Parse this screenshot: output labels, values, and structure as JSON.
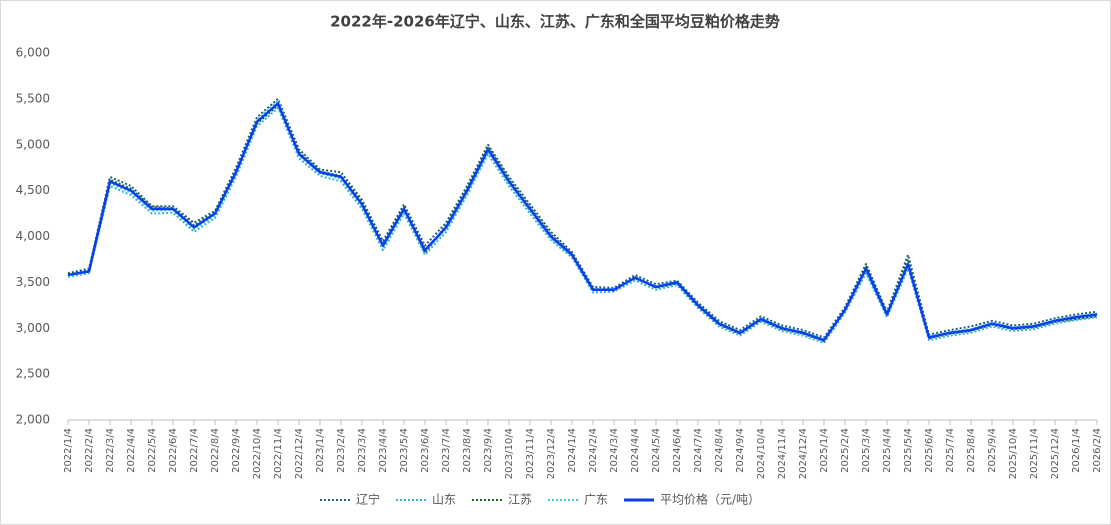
{
  "chart_data": {
    "type": "line",
    "title": "2022年-2026年辽宁、山东、江苏、广东和全国平均豆粕价格走势",
    "categories": [
      "2022/1/4",
      "2022/2/4",
      "2022/3/4",
      "2022/4/4",
      "2022/5/4",
      "2022/6/4",
      "2022/7/4",
      "2022/8/4",
      "2022/9/4",
      "2022/10/4",
      "2022/11/4",
      "2022/12/4",
      "2023/1/4",
      "2023/2/4",
      "2023/3/4",
      "2023/4/4",
      "2023/5/4",
      "2023/6/4",
      "2023/7/4",
      "2023/8/4",
      "2023/9/4",
      "2023/10/4",
      "2023/11/4",
      "2023/12/4",
      "2024/1/4",
      "2024/2/4",
      "2024/3/4",
      "2024/4/4",
      "2024/5/4",
      "2024/6/4",
      "2024/7/4",
      "2024/8/4",
      "2024/9/4",
      "2024/10/4",
      "2024/11/4",
      "2024/12/4",
      "2025/1/4",
      "2025/2/4",
      "2025/3/4",
      "2025/4/4",
      "2025/5/4",
      "2025/6/4",
      "2025/7/4",
      "2025/8/4",
      "2025/9/4",
      "2025/10/4",
      "2025/11/4",
      "2025/12/4",
      "2026/1/4",
      "2026/2/4"
    ],
    "series": [
      {
        "name": "辽宁",
        "color": "#1f5f7f",
        "style": "dotted",
        "values": [
          3600,
          3650,
          4650,
          4550,
          4330,
          4330,
          4150,
          4280,
          4750,
          5300,
          5500,
          4950,
          4730,
          4700,
          4400,
          3950,
          4350,
          3900,
          4150,
          4550,
          5000,
          4650,
          4350,
          4050,
          3830,
          3450,
          3440,
          3580,
          3480,
          3520,
          3280,
          3080,
          2980,
          3130,
          3030,
          2980,
          2900,
          3230,
          3700,
          3180,
          3800,
          2930,
          2980,
          3020,
          3080,
          3030,
          3050,
          3110,
          3150,
          3180
        ]
      },
      {
        "name": "山东",
        "color": "#2fb4dc",
        "style": "dotted",
        "values": [
          3560,
          3600,
          4550,
          4450,
          4250,
          4260,
          4050,
          4200,
          4650,
          5200,
          5400,
          4850,
          4660,
          4600,
          4300,
          3850,
          4250,
          3800,
          4050,
          4450,
          4900,
          4550,
          4250,
          3960,
          3770,
          3390,
          3400,
          3520,
          3420,
          3470,
          3220,
          3020,
          2920,
          3070,
          2970,
          2920,
          2840,
          3170,
          3600,
          3120,
          3650,
          2870,
          2920,
          2950,
          3020,
          2970,
          2990,
          3050,
          3090,
          3120
        ]
      },
      {
        "name": "江苏",
        "color": "#1a6b2a",
        "style": "dotted",
        "values": [
          3590,
          3630,
          4620,
          4520,
          4320,
          4310,
          4120,
          4260,
          4720,
          5230,
          5430,
          4920,
          4710,
          4660,
          4380,
          3920,
          4320,
          3820,
          4120,
          4520,
          4980,
          4620,
          4320,
          4020,
          3810,
          3430,
          3410,
          3560,
          3440,
          3490,
          3240,
          3040,
          2940,
          3090,
          2990,
          2940,
          2860,
          3210,
          3680,
          3160,
          3750,
          2890,
          2940,
          2970,
          3040,
          2990,
          3010,
          3070,
          3100,
          3130
        ]
      },
      {
        "name": "广东",
        "color": "#45c6d6",
        "style": "dotted",
        "values": [
          3570,
          3610,
          4580,
          4480,
          4280,
          4290,
          4080,
          4230,
          4680,
          5270,
          5480,
          4880,
          4690,
          4630,
          4330,
          3880,
          4280,
          3840,
          4080,
          4480,
          4930,
          4580,
          4280,
          3980,
          3790,
          3410,
          3430,
          3540,
          3460,
          3510,
          3260,
          3060,
          2960,
          3110,
          3010,
          2960,
          2880,
          3190,
          3630,
          3140,
          3680,
          2910,
          2960,
          2990,
          3060,
          3010,
          3030,
          3090,
          3130,
          3160
        ]
      },
      {
        "name": "平均价格（元/吨）",
        "color": "#0a3ef0",
        "style": "solid",
        "values": [
          3580,
          3620,
          4600,
          4500,
          4300,
          4300,
          4100,
          4250,
          4700,
          5250,
          5450,
          4900,
          4700,
          4650,
          4350,
          3900,
          4300,
          3850,
          4100,
          4500,
          4950,
          4600,
          4300,
          4000,
          3800,
          3420,
          3420,
          3550,
          3450,
          3500,
          3250,
          3050,
          2950,
          3100,
          3000,
          2950,
          2870,
          3200,
          3650,
          3150,
          3700,
          2900,
          2950,
          2980,
          3050,
          3000,
          3020,
          3080,
          3120,
          3150
        ]
      }
    ],
    "ylim": [
      2000,
      6000
    ],
    "yticks": [
      {
        "value": 2000,
        "label": "2,000"
      },
      {
        "value": 2500,
        "label": "2,500"
      },
      {
        "value": 3000,
        "label": "3,000"
      },
      {
        "value": 3500,
        "label": "3,500"
      },
      {
        "value": 4000,
        "label": "4,000"
      },
      {
        "value": 4500,
        "label": "4,500"
      },
      {
        "value": 5000,
        "label": "5,000"
      },
      {
        "value": 5500,
        "label": "5,500"
      },
      {
        "value": 6000,
        "label": "6,000"
      }
    ],
    "grid": false,
    "legend": "bottom"
  }
}
